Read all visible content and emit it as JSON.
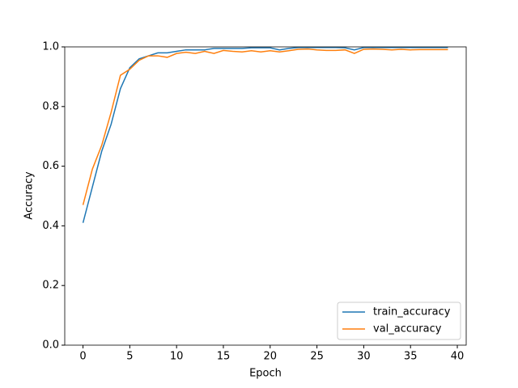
{
  "chart_data": {
    "type": "line",
    "x_label": "Epoch",
    "y_label": "Accuracy",
    "x": [
      0,
      1,
      2,
      3,
      4,
      5,
      6,
      7,
      8,
      9,
      10,
      11,
      12,
      13,
      14,
      15,
      16,
      17,
      18,
      19,
      20,
      21,
      22,
      23,
      24,
      25,
      26,
      27,
      28,
      29,
      30,
      31,
      32,
      33,
      34,
      35,
      36,
      37,
      38,
      39
    ],
    "series": [
      {
        "name": "train_accuracy",
        "color": "#1f77b4",
        "values": [
          0.41,
          0.53,
          0.65,
          0.74,
          0.86,
          0.93,
          0.96,
          0.97,
          0.98,
          0.98,
          0.985,
          0.99,
          0.99,
          0.99,
          0.995,
          0.995,
          0.995,
          0.995,
          0.997,
          0.997,
          0.997,
          0.99,
          0.995,
          0.998,
          0.998,
          0.998,
          0.998,
          0.998,
          0.997,
          0.99,
          0.998,
          0.998,
          0.998,
          0.998,
          0.998,
          0.998,
          0.998,
          0.998,
          0.998,
          0.998
        ]
      },
      {
        "name": "val_accuracy",
        "color": "#ff7f0e",
        "values": [
          0.47,
          0.59,
          0.67,
          0.78,
          0.905,
          0.925,
          0.955,
          0.97,
          0.97,
          0.965,
          0.978,
          0.982,
          0.978,
          0.985,
          0.978,
          0.988,
          0.985,
          0.983,
          0.987,
          0.983,
          0.987,
          0.983,
          0.987,
          0.992,
          0.993,
          0.99,
          0.988,
          0.988,
          0.99,
          0.978,
          0.992,
          0.993,
          0.992,
          0.99,
          0.992,
          0.99,
          0.991,
          0.991,
          0.991,
          0.991
        ]
      }
    ],
    "xlim": [
      -1.95,
      40.95
    ],
    "xticks": [
      0,
      5,
      10,
      15,
      20,
      25,
      30,
      35,
      40
    ],
    "ylim": [
      0,
      1
    ],
    "yticks": [
      {
        "value": 0,
        "label": "0.0"
      },
      0.2,
      0.4,
      0.6,
      0.8,
      {
        "value": 1,
        "label": "1.0"
      }
    ],
    "grid": false,
    "legend": "lower right"
  }
}
